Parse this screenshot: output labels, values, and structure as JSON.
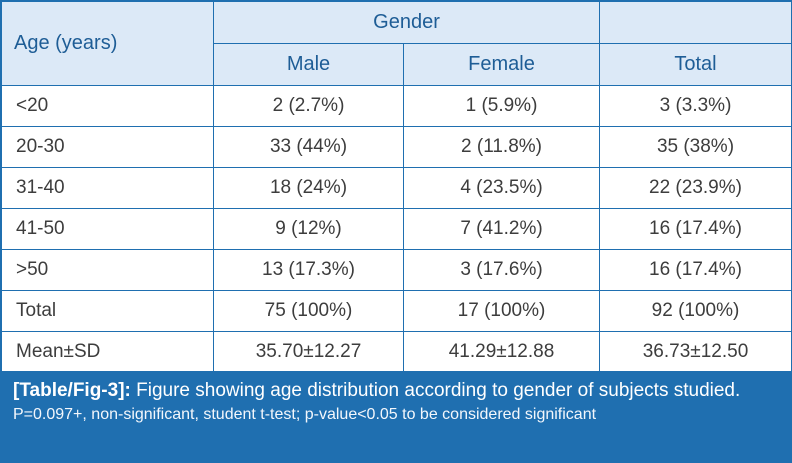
{
  "table": {
    "header": {
      "age_label": "Age (years)",
      "gender_label": "Gender",
      "male_label": "Male",
      "female_label": "Female",
      "total_label": "Total"
    },
    "rows": [
      {
        "age": "<20",
        "male": "2 (2.7%)",
        "female": "1 (5.9%)",
        "total": "3 (3.3%)"
      },
      {
        "age": "20-30",
        "male": "33 (44%)",
        "female": "2 (11.8%)",
        "total": "35 (38%)"
      },
      {
        "age": "31-40",
        "male": "18 (24%)",
        "female": "4 (23.5%)",
        "total": "22 (23.9%)"
      },
      {
        "age": "41-50",
        "male": "9 (12%)",
        "female": "7 (41.2%)",
        "total": "16 (17.4%)"
      },
      {
        "age": ">50",
        "male": "13 (17.3%)",
        "female": "3 (17.6%)",
        "total": "16 (17.4%)"
      },
      {
        "age": "Total",
        "male": "75 (100%)",
        "female": "17 (100%)",
        "total": "92 (100%)"
      },
      {
        "age": "Mean±SD",
        "male": "35.70±12.27",
        "female": "41.29±12.88",
        "total": "36.73±12.50"
      }
    ]
  },
  "caption": {
    "title": "[Table/Fig-3]:",
    "text": " Figure showing age distribution according to gender of subjects studied.",
    "note": "P=0.097+, non-significant, student t-test; p-value<0.05 to be considered significant"
  },
  "colors": {
    "border": "#1f6fb0",
    "header_bg": "#dce9f7",
    "header_text": "#1e5d96",
    "caption_bg": "#1f6fb0"
  }
}
